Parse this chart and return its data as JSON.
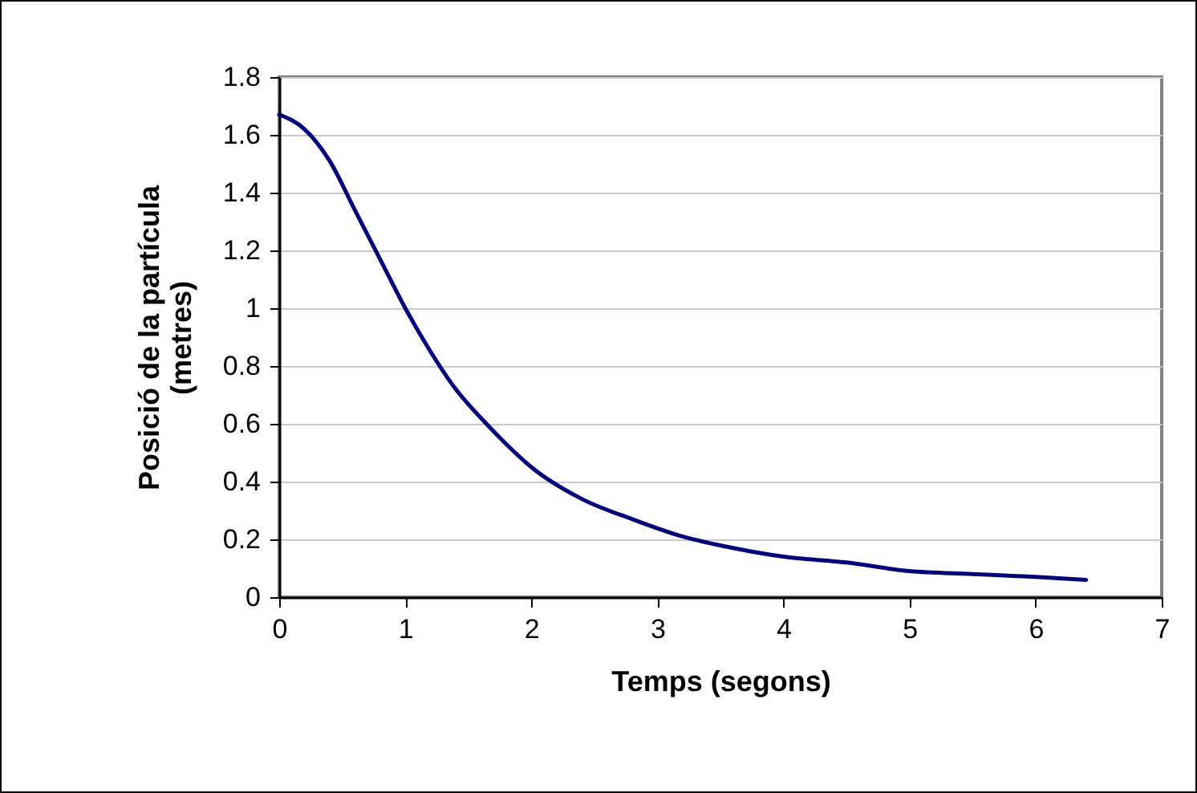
{
  "chart_data": {
    "type": "line",
    "xlabel": "Temps (segons)",
    "ylabel": "Posició de la partícula (metres)",
    "x": [
      0,
      0.2,
      0.4,
      0.6,
      0.8,
      1.0,
      1.2,
      1.4,
      1.6,
      1.8,
      2.0,
      2.4,
      2.8,
      3.2,
      3.6,
      4.0,
      4.5,
      5.0,
      5.5,
      6.0,
      6.4
    ],
    "series": [
      {
        "color": "#000080",
        "values": [
          1.67,
          1.62,
          1.51,
          1.34,
          1.17,
          1.0,
          0.85,
          0.72,
          0.62,
          0.53,
          0.45,
          0.34,
          0.27,
          0.21,
          0.17,
          0.14,
          0.12,
          0.09,
          0.08,
          0.07,
          0.06
        ]
      }
    ],
    "xlim": [
      0,
      7
    ],
    "xticks": [
      0,
      1,
      2,
      3,
      4,
      5,
      6,
      7
    ],
    "ylim": [
      0,
      1.8
    ],
    "yticks": [
      0,
      0.2,
      0.4,
      0.6,
      0.8,
      1,
      1.2,
      1.4,
      1.6,
      1.8
    ],
    "grid": "y",
    "legend": false,
    "marker": "none",
    "line_style": "solid"
  }
}
